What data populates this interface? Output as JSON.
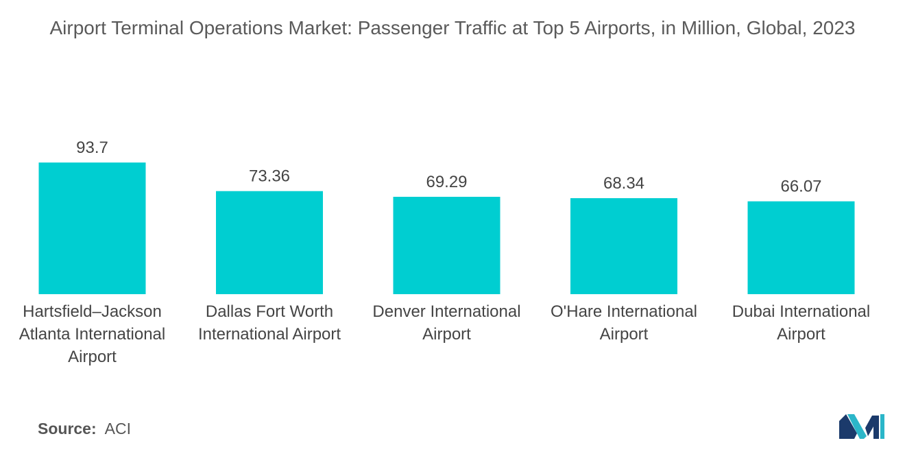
{
  "chart_data": {
    "type": "bar",
    "title": "Airport Terminal Operations Market: Passenger Traffic at Top 5 Airports, in Million, Global, 2023",
    "categories": [
      "Hartsfield–Jackson Atlanta International Airport",
      "Dallas Fort Worth International Airport",
      "Denver International Airport",
      "O'Hare International Airport",
      "Dubai International Airport"
    ],
    "values": [
      93.7,
      73.36,
      69.29,
      68.34,
      66.07
    ],
    "value_labels": [
      "93.7",
      "73.36",
      "69.29",
      "68.34",
      "66.07"
    ],
    "xlabel": "",
    "ylabel": "",
    "ylim": [
      0,
      93.7
    ],
    "grid": false,
    "bar_color": "#00ced1"
  },
  "source": {
    "key": "Source:",
    "value": "ACI"
  },
  "logo": {
    "icon": "mordor-intelligence-logo-icon",
    "colors": [
      "#1b3a6b",
      "#2bb6c9"
    ]
  }
}
